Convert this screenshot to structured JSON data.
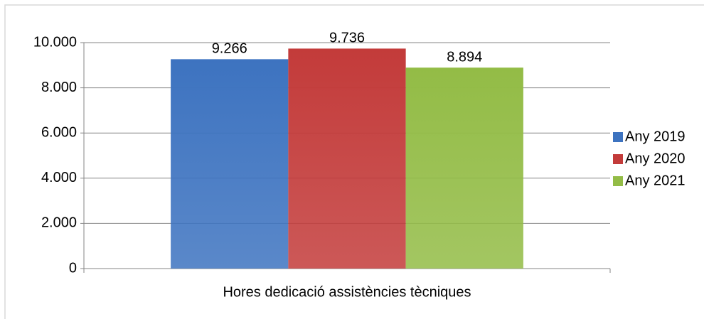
{
  "chart_data": {
    "type": "bar",
    "categories": [
      "Hores dedicació assistències tècniques"
    ],
    "series": [
      {
        "name": "Any 2019",
        "color": "#3d73c0",
        "values": [
          9266
        ],
        "value_labels": [
          "9.266"
        ]
      },
      {
        "name": "Any 2020",
        "color": "#c33b3a",
        "values": [
          9736
        ],
        "value_labels": [
          "9.736"
        ]
      },
      {
        "name": "Any 2021",
        "color": "#93bc46",
        "values": [
          8894
        ],
        "value_labels": [
          "8.894"
        ]
      }
    ],
    "ylim": [
      0,
      10000
    ],
    "yticks": [
      0,
      {
        "value": 2000,
        "label": "2.000"
      },
      {
        "value": 4000,
        "label": "4.000"
      },
      {
        "value": 6000,
        "label": "6.000"
      },
      {
        "value": 8000,
        "label": "8.000"
      },
      {
        "value": 10000,
        "label": "10.000"
      }
    ],
    "grid": true,
    "legend": "right"
  }
}
